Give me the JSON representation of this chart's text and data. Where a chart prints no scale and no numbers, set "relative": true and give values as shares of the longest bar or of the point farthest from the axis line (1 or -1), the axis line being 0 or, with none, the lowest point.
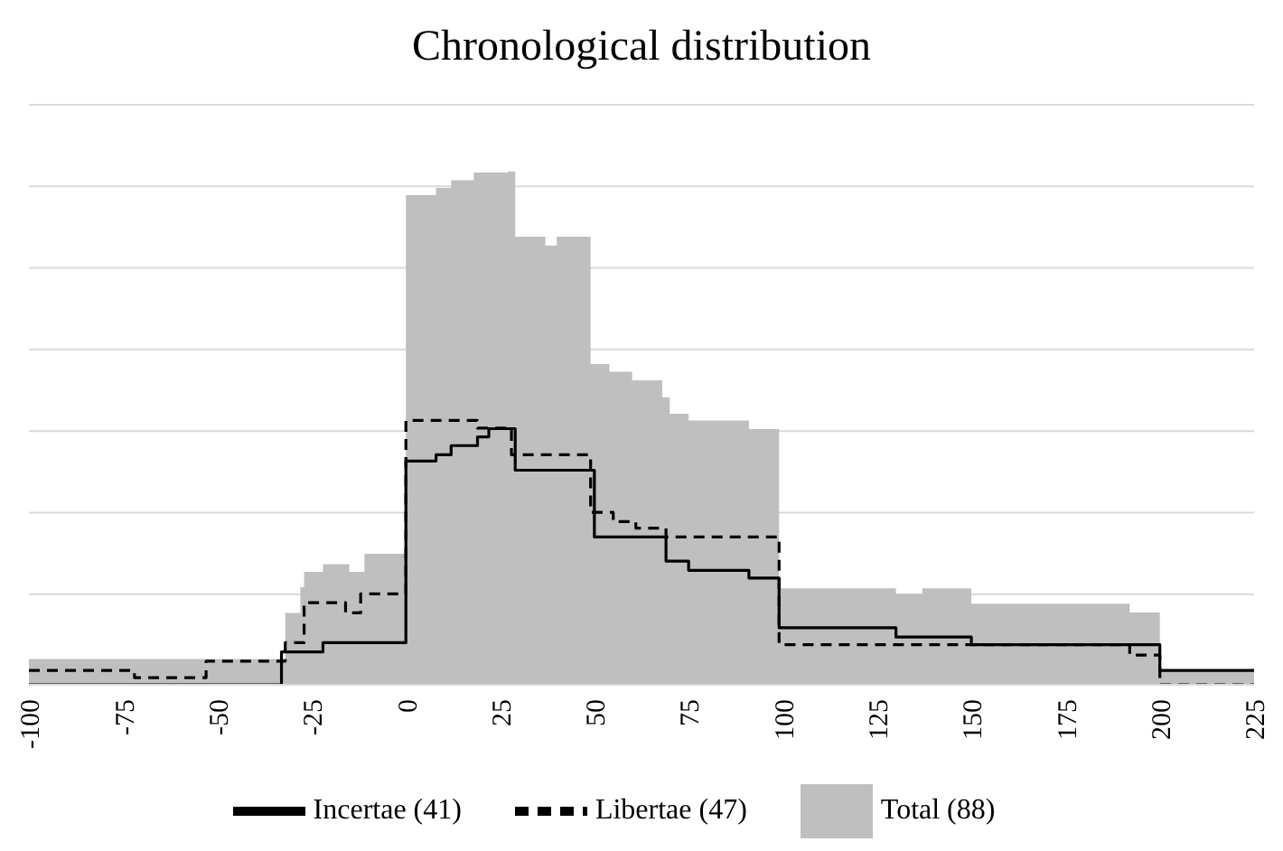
{
  "chart_data": {
    "type": "step",
    "title": "Chronological distribution",
    "relative": true,
    "xlim": [
      -100,
      225
    ],
    "xticks": [
      -100,
      -75,
      -50,
      -25,
      0,
      25,
      50,
      75,
      100,
      125,
      150,
      175,
      200,
      225
    ],
    "grid": "y",
    "legend": "bottom",
    "series": [
      {
        "name": "Total (88)",
        "type": "area",
        "color": "#bfbfbf",
        "x": [
          -100,
          -32,
          -28,
          -27,
          -22,
          -15,
          -11,
          0,
          8,
          12,
          18,
          27,
          29,
          37,
          40,
          49,
          54,
          60,
          68,
          70,
          75,
          91,
          99,
          130,
          137,
          150,
          192,
          200,
          225
        ],
        "values": [
          0.05,
          0.14,
          0.19,
          0.22,
          0.235,
          0.22,
          0.255,
          0.954,
          0.968,
          0.983,
          0.998,
          1.0,
          0.873,
          0.856,
          0.873,
          0.625,
          0.61,
          0.593,
          0.56,
          0.528,
          0.515,
          0.498,
          0.188,
          0.177,
          0.188,
          0.158,
          0.141,
          0.028,
          0.028
        ]
      },
      {
        "name": "Libertae (47)",
        "color": "#000000",
        "line_style": "dashed",
        "x": [
          -100,
          -72,
          -53,
          -32,
          -27,
          -16,
          -12,
          0,
          19,
          28,
          49,
          55,
          61,
          69,
          99,
          192,
          200,
          225
        ],
        "values": [
          0.028,
          0.014,
          0.046,
          0.082,
          0.16,
          0.14,
          0.177,
          0.515,
          0.5,
          0.448,
          0.336,
          0.318,
          0.305,
          0.288,
          0.078,
          0.058,
          0.0,
          0.0
        ]
      },
      {
        "name": "Incertae (41)",
        "color": "#000000",
        "line_style": "solid",
        "x": [
          -100,
          -33,
          -22,
          0,
          8,
          12,
          19,
          22,
          29,
          50,
          69,
          75,
          91,
          99,
          130,
          150,
          200,
          225
        ],
        "values": [
          0.0,
          0.064,
          0.082,
          0.436,
          0.448,
          0.466,
          0.483,
          0.499,
          0.418,
          0.288,
          0.241,
          0.223,
          0.208,
          0.111,
          0.093,
          0.078,
          0.028,
          0.028
        ]
      }
    ]
  }
}
